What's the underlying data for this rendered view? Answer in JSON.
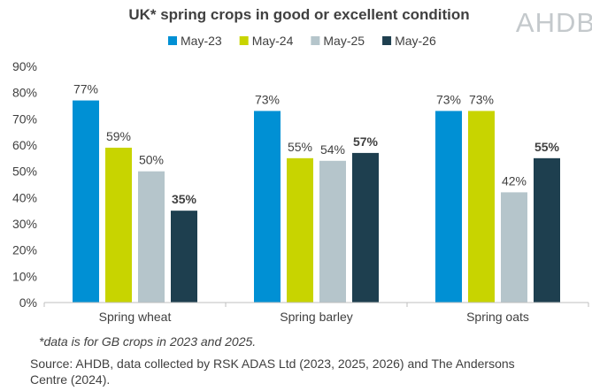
{
  "logo_text": "AHDB",
  "footnote": "*data is for GB crops in 2023 and 2025.",
  "source_line1": "Source: AHDB, data collected by RSK ADAS Ltd (2023, 2025, 2026) and The Andersons",
  "source_line2": "Centre (2024).",
  "chart_data": {
    "type": "bar",
    "title": "UK* spring crops in good or excellent condition",
    "xlabel": "",
    "ylabel": "",
    "categories": [
      "Spring wheat",
      "Spring barley",
      "Spring oats"
    ],
    "ylim": [
      0,
      90
    ],
    "y_ticks": [
      "0%",
      "10%",
      "20%",
      "30%",
      "40%",
      "50%",
      "60%",
      "70%",
      "80%",
      "90%"
    ],
    "legend_position": "top",
    "grid": false,
    "series": [
      {
        "name": "May-23",
        "color": "#0090d4",
        "values": [
          77,
          73,
          73
        ],
        "labels": [
          "77%",
          "73%",
          "73%"
        ],
        "bold": false
      },
      {
        "name": "May-24",
        "color": "#c8d400",
        "values": [
          59,
          55,
          73
        ],
        "labels": [
          "59%",
          "55%",
          "73%"
        ],
        "bold": false
      },
      {
        "name": "May-25",
        "color": "#b5c5cb",
        "values": [
          50,
          54,
          42
        ],
        "labels": [
          "50%",
          "54%",
          "42%"
        ],
        "bold": false
      },
      {
        "name": "May-26",
        "color": "#1e3f4f",
        "values": [
          35,
          57,
          55
        ],
        "labels": [
          "35%",
          "57%",
          "55%"
        ],
        "bold": true
      }
    ]
  }
}
